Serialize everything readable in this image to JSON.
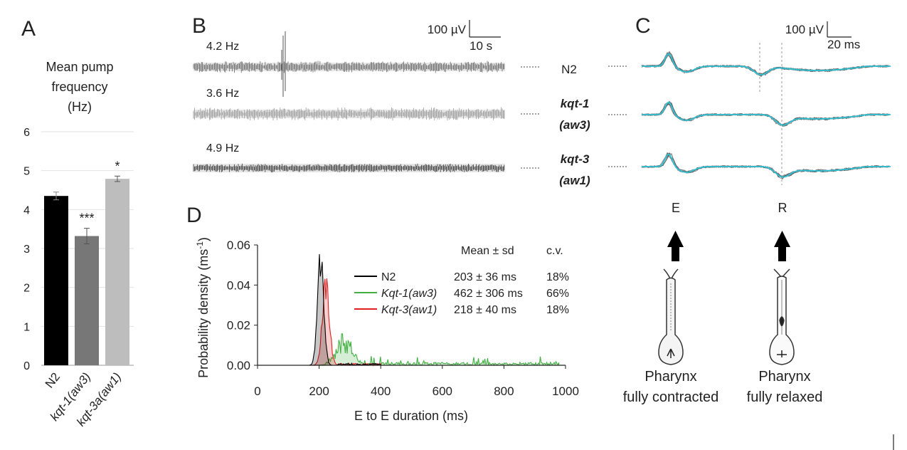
{
  "panels": {
    "a": "A",
    "b": "B",
    "c": "C",
    "d": "D"
  },
  "chart_data": [
    {
      "type": "bar",
      "panel": "A",
      "title_lines": [
        "Mean pump",
        "frequency",
        "(Hz)"
      ],
      "categories": [
        "N2",
        "kqt-1(aw3)",
        "kqt-3a(aw1)"
      ],
      "values": [
        4.35,
        3.32,
        4.79
      ],
      "errors": [
        0.1,
        0.2,
        0.07
      ],
      "significance": [
        "",
        "***",
        "*"
      ],
      "colors": [
        "#000000",
        "#777777",
        "#bdbdbd"
      ],
      "ylim": [
        0,
        6
      ],
      "yticks": [
        "0",
        "1",
        "2",
        "3",
        "4",
        "5",
        "6"
      ],
      "grid": true
    },
    {
      "type": "line",
      "panel": "B",
      "description_free": true,
      "traces": [
        {
          "rate_label": "4.2 Hz",
          "genotype": [
            "N2"
          ],
          "amplitude": 0.4,
          "ampvar": 0.5
        },
        {
          "rate_label": "3.6 Hz",
          "genotype": [
            "kqt-1",
            "(aw3)"
          ],
          "amplitude": 0.3,
          "ampvar": 1.0
        },
        {
          "rate_label": "4.9 Hz",
          "genotype": [
            "kqt-3",
            "(aw1)"
          ],
          "amplitude": 0.4,
          "ampvar": 0.2
        }
      ],
      "scalebar": {
        "amplitude": "100 µV",
        "time": "10 s"
      }
    },
    {
      "type": "line",
      "panel": "C",
      "scalebar": {
        "amplitude": "100 µV",
        "time": "20 ms"
      },
      "markers": {
        "e": "E",
        "r": "R"
      },
      "captions": [
        [
          "Pharynx",
          "fully contracted"
        ],
        [
          "Pharynx",
          "fully relaxed"
        ]
      ]
    },
    {
      "type": "line",
      "panel": "D",
      "xlabel": "E to E duration (ms)",
      "ylabel": "Probability density (ms",
      "ylabel_sup": "-1",
      "ylabel_end": ")",
      "xlim": [
        0,
        1000
      ],
      "ylim": [
        0,
        0.06
      ],
      "xticks": [
        "0",
        "200",
        "400",
        "600",
        "800",
        "1000"
      ],
      "yticks": [
        "0.00",
        "0.02",
        "0.04",
        "0.06"
      ],
      "stats_header": {
        "mean": "Mean ± sd",
        "cv": "c.v."
      },
      "series": [
        {
          "name": "N2",
          "color": "#000000",
          "italic": false,
          "mean": 203,
          "sd": 36,
          "peak": 0.058,
          "stat": "203 ± 36 ms",
          "cv": "18%"
        },
        {
          "name": "Kqt-1(aw3)",
          "color": "#44b044",
          "italic": true,
          "mean": 462,
          "sd": 306,
          "peak": 0.015,
          "stat": "462 ± 306 ms",
          "cv": "66%"
        },
        {
          "name": "Kqt-3(aw1)",
          "color": "#e02020",
          "italic": true,
          "mean": 218,
          "sd": 40,
          "peak": 0.042,
          "stat": "218 ± 40 ms",
          "cv": "18%"
        }
      ]
    }
  ]
}
